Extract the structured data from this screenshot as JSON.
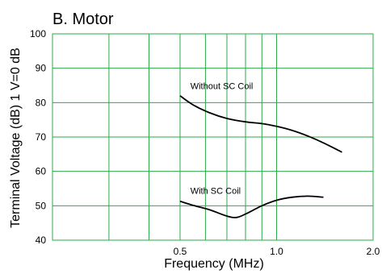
{
  "chart_data": {
    "type": "line",
    "title": "B. Motor",
    "xlabel": "Frequency (MHz)",
    "ylabel": "Terminal Voltage (dB) 1 V=0 dB",
    "x_scale": "log",
    "xlim": [
      0.2,
      2.0
    ],
    "ylim": [
      40,
      100
    ],
    "x_ticks": [
      {
        "value": 0.5,
        "label": "0.5"
      },
      {
        "value": 1.0,
        "label": "1.0"
      },
      {
        "value": 2.0,
        "label": "2.0"
      }
    ],
    "y_ticks": [
      40,
      50,
      60,
      70,
      80,
      90,
      100
    ],
    "grid": true,
    "grid_color": "#2eaa4a",
    "line_color": "#000000",
    "series": [
      {
        "name": "Without SC Coil",
        "x": [
          0.5,
          0.55,
          0.62,
          0.7,
          0.8,
          0.9,
          1.0,
          1.12,
          1.25,
          1.4,
          1.6
        ],
        "y": [
          82,
          79.3,
          77,
          75.4,
          74.4,
          73.9,
          73.1,
          71.9,
          70.3,
          68.3,
          65.6
        ]
      },
      {
        "name": "With SC Coil",
        "x": [
          0.5,
          0.55,
          0.62,
          0.7,
          0.75,
          0.8,
          0.9,
          1.0,
          1.12,
          1.25,
          1.4
        ],
        "y": [
          51.3,
          50.1,
          48.8,
          47,
          46.6,
          47.6,
          50,
          51.6,
          52.5,
          52.8,
          52.5
        ]
      }
    ],
    "annotations": [
      {
        "text": "Without SC Coil",
        "x": 0.52,
        "y": 83.5
      },
      {
        "text": "With SC Coil",
        "x": 0.52,
        "y": 53
      }
    ]
  }
}
